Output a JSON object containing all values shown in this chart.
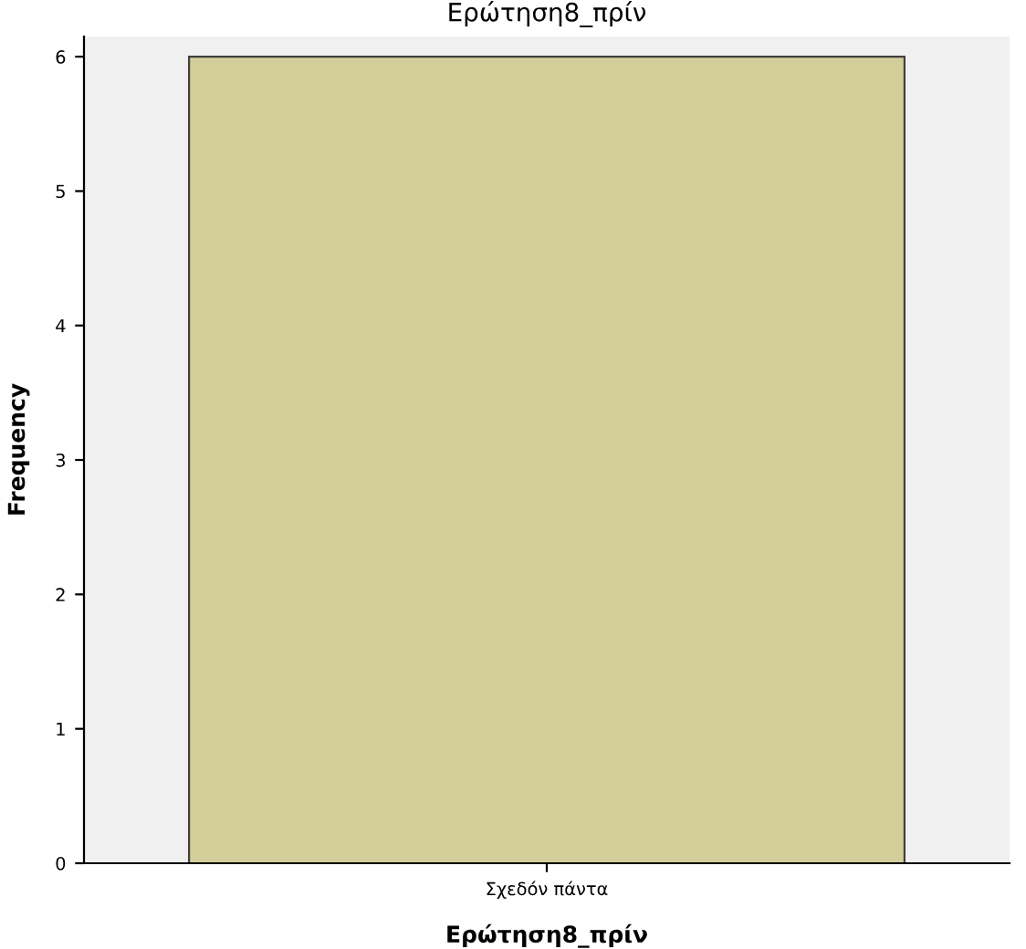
{
  "chart_data": {
    "type": "bar",
    "title": "Ερώτηση8_πρίν",
    "xlabel": "Ερώτηση8_πρίν",
    "ylabel": "Frequency",
    "categories": [
      "Σχεδόν πάντα"
    ],
    "values": [
      6
    ],
    "color": "#d3ce9a",
    "ylim": [
      0,
      6.15
    ],
    "yticks": [
      0,
      1,
      2,
      3,
      4,
      5,
      6
    ],
    "grid": false
  }
}
